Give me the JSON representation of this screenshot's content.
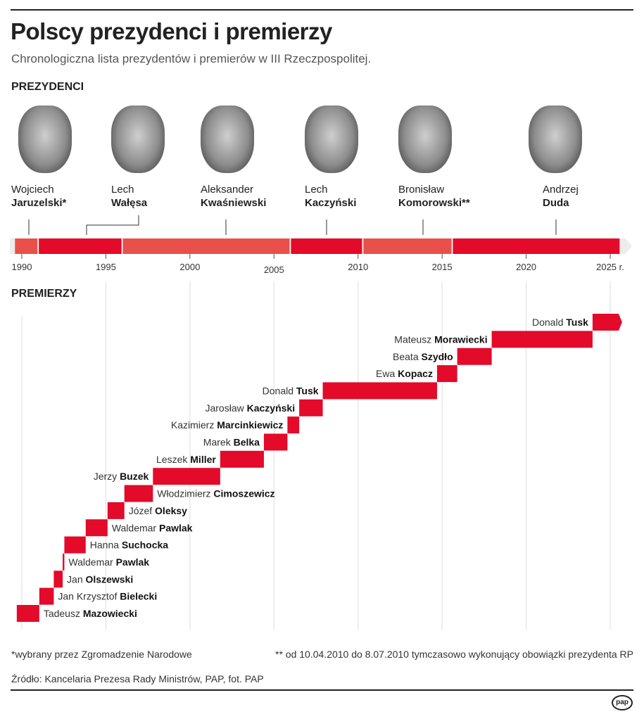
{
  "title": "Polscy prezydenci i premierzy",
  "subtitle": "Chronologiczna lista prezydentów i premierów w III Rzeczpospolitej.",
  "presidents_heading": "PREZYDENCI",
  "premiers_heading": "PREMIERZY",
  "colors": {
    "red": "#e30a2a",
    "light_red": "#e8504a",
    "grey": "#ececec",
    "grid": "#dddddd"
  },
  "chart_data": {
    "type": "timeline",
    "x_ticks": [
      1990,
      1995,
      2000,
      2005,
      2010,
      2015,
      2020,
      2025
    ],
    "x_tick_labels": [
      "1990",
      "1995",
      "2000",
      "2005",
      "2010",
      "2015",
      "2020",
      "2025 r."
    ],
    "xlim": [
      1989.3,
      2026.3
    ],
    "presidents": [
      {
        "first": "Wojciech",
        "last": "Jaruzelski*",
        "start": 1989.55,
        "end": 1990.97,
        "color": "light_red"
      },
      {
        "first": "Lech",
        "last": "Wałęsa",
        "start": 1990.97,
        "end": 1995.97,
        "color": "red"
      },
      {
        "first": "Aleksander",
        "last": "Kwaśniewski",
        "start": 1995.97,
        "end": 2005.97,
        "color": "light_red"
      },
      {
        "first": "Lech",
        "last": "Kaczyński",
        "start": 2005.97,
        "end": 2010.28,
        "color": "red"
      },
      {
        "first": "Bronisław",
        "last": "Komorowski**",
        "start": 2010.28,
        "end": 2015.6,
        "color": "light_red"
      },
      {
        "first": "Andrzej",
        "last": "Duda",
        "start": 2015.6,
        "end": 2025.6,
        "color": "red"
      }
    ],
    "premiers": [
      {
        "first": "Tadeusz",
        "last": "Mazowiecki",
        "start": 1989.7,
        "end": 1991.04
      },
      {
        "first": "Jan Krzysztof",
        "last": "Bielecki",
        "start": 1991.04,
        "end": 1991.9
      },
      {
        "first": "Jan",
        "last": "Olszewski",
        "start": 1991.9,
        "end": 1992.43
      },
      {
        "first": "Waldemar",
        "last": "Pawlak",
        "start": 1992.43,
        "end": 1992.53
      },
      {
        "first": "Hanna",
        "last": "Suchocka",
        "start": 1992.53,
        "end": 1993.8
      },
      {
        "first": "Waldemar",
        "last": "Pawlak",
        "start": 1993.8,
        "end": 1995.1
      },
      {
        "first": "Józef",
        "last": "Oleksy",
        "start": 1995.1,
        "end": 1996.1
      },
      {
        "first": "Włodzimierz",
        "last": "Cimoszewicz",
        "start": 1996.1,
        "end": 1997.8
      },
      {
        "first": "Jerzy",
        "last": "Buzek",
        "start": 1997.8,
        "end": 2001.8
      },
      {
        "first": "Leszek",
        "last": "Miller",
        "start": 2001.8,
        "end": 2004.4
      },
      {
        "first": "Marek",
        "last": "Belka",
        "start": 2004.4,
        "end": 2005.8
      },
      {
        "first": "Kazimierz",
        "last": "Marcinkiewicz",
        "start": 2005.8,
        "end": 2006.5
      },
      {
        "first": "Jarosław",
        "last": "Kaczyński",
        "start": 2006.5,
        "end": 2007.9
      },
      {
        "first": "Donald",
        "last": "Tusk",
        "start": 2007.9,
        "end": 2014.7
      },
      {
        "first": "Ewa",
        "last": "Kopacz",
        "start": 2014.7,
        "end": 2015.9
      },
      {
        "first": "Beata",
        "last": "Szydło",
        "start": 2015.9,
        "end": 2017.95
      },
      {
        "first": "Mateusz",
        "last": "Morawiecki",
        "start": 2017.95,
        "end": 2023.95
      },
      {
        "first": "Donald",
        "last": "Tusk",
        "start": 2023.95,
        "end": 2025.5
      }
    ]
  },
  "footnote1": "*wybrany przez Zgromadzenie Narodowe",
  "footnote2": "** od 10.04.2010 do 8.07.2010 tymczasowo wykonujący obowiązki prezydenta RP",
  "source": "Źródło: Kancelaria Prezesa Rady Ministrów, PAP, fot. PAP",
  "logo": "pap"
}
